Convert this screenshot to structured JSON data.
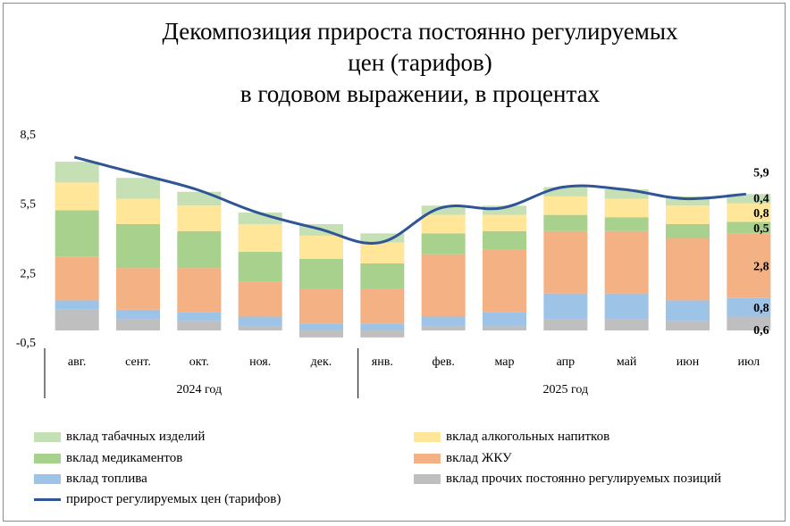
{
  "chart_data": {
    "type": "bar",
    "title": "Декомпозиция прироста постоянно регулируемых цен (тарифов) в годовом выражении, в процентах",
    "title_lines": [
      "Декомпозиция прироста постоянно регулируемых",
      "цен (тарифов)",
      "в годовом выражении, в процентах"
    ],
    "categories": [
      "авг.",
      "сент.",
      "окт.",
      "ноя.",
      "дек.",
      "янв.",
      "фев.",
      "мар",
      "апр",
      "май",
      "июн",
      "июл"
    ],
    "year_groups": [
      {
        "label": "2024 год",
        "count": 5
      },
      {
        "label": "2025 год",
        "count": 7
      }
    ],
    "yticks": [
      "8,5",
      "5,5",
      "2,5",
      "-0,5"
    ],
    "ylim": [
      -0.5,
      8.5
    ],
    "stacked": true,
    "series": [
      {
        "name": "вклад прочих постоянно регулируемых позиций",
        "color": "#bfbfbf",
        "values": [
          0.9,
          0.5,
          0.4,
          0.2,
          -0.3,
          -0.3,
          0.2,
          0.2,
          0.5,
          0.5,
          0.4,
          0.6
        ]
      },
      {
        "name": "вклад топлива",
        "color": "#9dc3e6",
        "values": [
          0.4,
          0.4,
          0.4,
          0.4,
          0.3,
          0.3,
          0.4,
          0.6,
          1.1,
          1.1,
          0.9,
          0.8
        ]
      },
      {
        "name": "вклад ЖКУ",
        "color": "#f4b183",
        "values": [
          1.9,
          1.8,
          1.9,
          1.5,
          1.5,
          1.5,
          2.7,
          2.7,
          2.7,
          2.7,
          2.7,
          2.8
        ]
      },
      {
        "name": "вклад медикаментов",
        "color": "#a9d18e",
        "values": [
          2.0,
          1.9,
          1.6,
          1.3,
          1.3,
          1.1,
          0.9,
          0.8,
          0.7,
          0.6,
          0.6,
          0.5
        ]
      },
      {
        "name": "вклад алкогольных напитков",
        "color": "#ffe699",
        "values": [
          1.2,
          1.1,
          1.1,
          1.2,
          1.0,
          0.9,
          0.8,
          0.7,
          0.8,
          0.8,
          0.8,
          0.8
        ]
      },
      {
        "name": "вклад табачных изделий",
        "color": "#c5e0b4",
        "values": [
          0.9,
          0.9,
          0.6,
          0.5,
          0.5,
          0.4,
          0.4,
          0.4,
          0.4,
          0.4,
          0.4,
          0.4
        ]
      }
    ],
    "line": {
      "name": "прирост регулируемых цен (тарифов)",
      "color": "#2f5597",
      "values": [
        7.5,
        6.8,
        6.1,
        5.1,
        4.4,
        3.8,
        5.3,
        5.3,
        6.2,
        6.1,
        5.7,
        5.9
      ]
    },
    "annotations": [
      {
        "category": "июл",
        "text": "5,9",
        "series": "прирост регулируемых цен (тарифов)"
      },
      {
        "category": "июл",
        "text": "0,4",
        "series": "вклад табачных изделий"
      },
      {
        "category": "июл",
        "text": "0,8",
        "series": "вклад алкогольных напитков"
      },
      {
        "category": "июл",
        "text": "0,5",
        "series": "вклад медикаментов"
      },
      {
        "category": "июл",
        "text": "2,8",
        "series": "вклад ЖКУ"
      },
      {
        "category": "июл",
        "text": "0,8",
        "series": "вклад топлива"
      },
      {
        "category": "июл",
        "text": "0,6",
        "series": "вклад прочих постоянно регулируемых позиций"
      }
    ],
    "legend": {
      "position": "bottom",
      "items": [
        {
          "label": "вклад табачных изделий",
          "kind": "bar",
          "color": "#c5e0b4"
        },
        {
          "label": "вклад алкогольных напитков",
          "kind": "bar",
          "color": "#ffe699"
        },
        {
          "label": "вклад медикаментов",
          "kind": "bar",
          "color": "#a9d18e"
        },
        {
          "label": "вклад ЖКУ",
          "kind": "bar",
          "color": "#f4b183"
        },
        {
          "label": "вклад топлива",
          "kind": "bar",
          "color": "#9dc3e6"
        },
        {
          "label": "вклад прочих постоянно регулируемых позиций",
          "kind": "bar",
          "color": "#bfbfbf"
        },
        {
          "label": "прирост регулируемых цен (тарифов)",
          "kind": "line",
          "color": "#2f5597"
        }
      ]
    },
    "grid": false
  }
}
